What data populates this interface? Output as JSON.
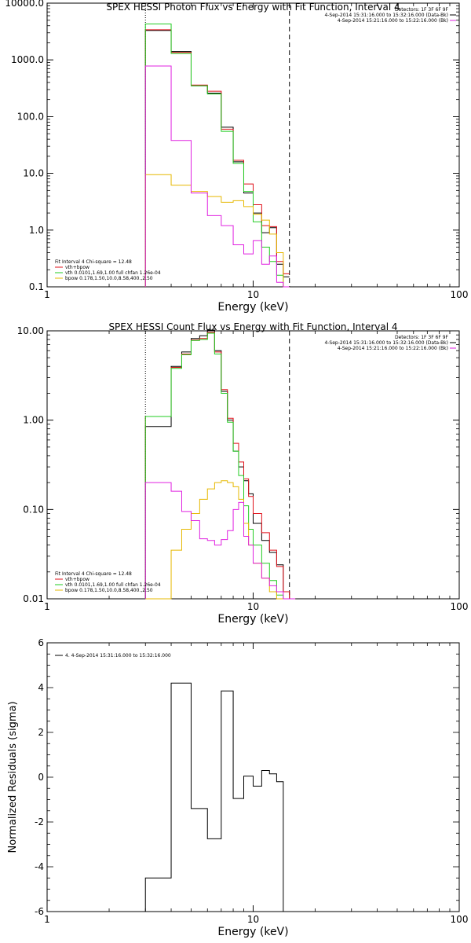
{
  "colors": {
    "axis": "#000000",
    "data": "#000000",
    "model": "#e0101a",
    "vth": "#22cc22",
    "bpow": "#e6b800",
    "background": "#e020e0"
  },
  "chart_data": [
    {
      "type": "line",
      "title": "SPEX HESSI Photon Flux vs Energy with Fit Function, Interval 4",
      "xlabel": "Energy (keV)",
      "ylabel": "",
      "xscale": "log",
      "yscale": "log",
      "xlim": [
        1,
        100
      ],
      "ylim": [
        0.1,
        10000
      ],
      "xtick_labels": [
        "1",
        "10",
        "100"
      ],
      "ytick_labels": [
        "0.1",
        "1.0",
        "10.0",
        "100.0",
        "1000.0",
        "10000.0"
      ],
      "ytick_values": [
        0.1,
        1,
        10,
        100,
        1000,
        10000
      ],
      "vlines": [
        {
          "x": 3.0,
          "style": "dotted"
        },
        {
          "x": 15.0,
          "style": "dashed"
        }
      ],
      "legend_right": [
        "Detectors: 1F 3F 6F 9F",
        "4-Sep-2014 15:31:16.000 to 15:32:16.000 (Data-Bk)",
        "4-Sep-2014 15:21:16.000 to 15:22:16.000 (Bk)"
      ],
      "legend_left": [
        "Fit Interval 4   Chi-square = 12.48",
        "vth+bpow",
        "vth 0.0101,1.69,1.00  full chfan 1.26e-04",
        "bpow 0.178,1.50,10.0,8.58,400.,2.50"
      ],
      "bin_edges": [
        3.0,
        4.0,
        5.0,
        6.0,
        7.0,
        8.0,
        9.0,
        10.0,
        11.0,
        12.0,
        13.0,
        14.0,
        15.0
      ],
      "series": [
        {
          "name": "Data-Bk",
          "color": "#000000",
          "values": [
            3300,
            1400,
            350,
            260,
            65,
            16,
            4.5,
            2.0,
            0.9,
            1.1,
            0.25,
            0.15
          ]
        },
        {
          "name": "vth+bpow",
          "color": "#e0101a",
          "values": [
            3400,
            1350,
            360,
            280,
            60,
            17,
            6.5,
            2.8,
            1.2,
            1.15,
            0.28,
            0.17
          ]
        },
        {
          "name": "vth",
          "color": "#22cc22",
          "values": [
            4300,
            1300,
            350,
            250,
            55,
            15,
            4.8,
            1.4,
            0.5,
            0.28,
            0.16,
            0.1
          ]
        },
        {
          "name": "bpow",
          "color": "#e6b800",
          "values": [
            9.5,
            6.2,
            4.8,
            3.9,
            3.1,
            3.3,
            2.6,
            1.9,
            1.5,
            0.85,
            0.4,
            0.1
          ]
        },
        {
          "name": "Bk",
          "color": "#e020e0",
          "values": [
            780,
            38,
            4.5,
            1.8,
            1.2,
            0.55,
            0.38,
            0.65,
            0.25,
            0.35,
            0.12,
            0.1
          ]
        }
      ]
    },
    {
      "type": "line",
      "title": "SPEX HESSI Count Flux vs Energy with Fit Function, Interval 4",
      "xlabel": "Energy (keV)",
      "ylabel": "",
      "xscale": "log",
      "yscale": "log",
      "xlim": [
        1,
        100
      ],
      "ylim": [
        0.01,
        10
      ],
      "xtick_labels": [
        "1",
        "10",
        "100"
      ],
      "ytick_labels": [
        "0.01",
        "0.10",
        "1.00",
        "10.00"
      ],
      "ytick_values": [
        0.01,
        0.1,
        1,
        10
      ],
      "vlines": [
        {
          "x": 3.0,
          "style": "dotted"
        },
        {
          "x": 15.0,
          "style": "dashed"
        }
      ],
      "legend_right": [
        "Detectors: 1F 3F 6F 9F",
        "4-Sep-2014 15:31:16.000 to 15:32:16.000 (Data-Bk)",
        "4-Sep-2014 15:21:16.000 to 15:22:16.000 (Bk)"
      ],
      "legend_left": [
        "Fit Interval 4   Chi-square = 12.48",
        "vth+bpow",
        "vth 0.0101,1.69,1.00  full chfan 1.26e-04",
        "bpow 0.178,1.50,10.0,8.58,400.,2.50"
      ],
      "bin_edges": [
        3.0,
        4.0,
        4.5,
        5.0,
        5.5,
        6.0,
        6.5,
        7.0,
        7.5,
        8.0,
        8.5,
        9.0,
        9.5,
        10.0,
        11.0,
        12.0,
        13.0,
        14.0,
        15.0,
        16.0
      ],
      "series": [
        {
          "name": "Data-Bk",
          "color": "#000000",
          "values": [
            0.85,
            4.0,
            5.8,
            8.2,
            8.8,
            10.2,
            6.0,
            2.1,
            1.0,
            0.45,
            0.3,
            0.21,
            0.15,
            0.07,
            0.045,
            0.033,
            0.024,
            0.012,
            0.01
          ]
        },
        {
          "name": "vth+bpow",
          "color": "#e0101a",
          "values": [
            1.1,
            3.9,
            5.5,
            7.9,
            8.2,
            9.6,
            5.8,
            2.2,
            1.05,
            0.55,
            0.34,
            0.22,
            0.14,
            0.09,
            0.055,
            0.035,
            0.023,
            0.012,
            0.01
          ]
        },
        {
          "name": "vth",
          "color": "#22cc22",
          "values": [
            1.1,
            3.8,
            5.4,
            7.8,
            8.0,
            9.4,
            5.5,
            2.0,
            0.95,
            0.45,
            0.24,
            0.11,
            0.06,
            0.04,
            0.025,
            0.016,
            0.011,
            0.01,
            0.01
          ]
        },
        {
          "name": "bpow",
          "color": "#e6b800",
          "values": [
            0.01,
            0.035,
            0.06,
            0.09,
            0.13,
            0.17,
            0.2,
            0.21,
            0.2,
            0.18,
            0.13,
            0.07,
            0.04,
            0.025,
            0.017,
            0.012,
            0.01,
            0.01,
            0.01
          ]
        },
        {
          "name": "Bk",
          "color": "#e020e0",
          "values": [
            0.2,
            0.16,
            0.095,
            0.075,
            0.047,
            0.045,
            0.04,
            0.046,
            0.058,
            0.1,
            0.12,
            0.05,
            0.04,
            0.025,
            0.017,
            0.014,
            0.012,
            0.01,
            0.01
          ]
        }
      ]
    },
    {
      "type": "line",
      "title": "",
      "xlabel": "Energy (keV)",
      "ylabel": "Normalized Residuals (sigma)",
      "xscale": "log",
      "yscale": "linear",
      "xlim": [
        1,
        100
      ],
      "ylim": [
        -6,
        6
      ],
      "xtick_labels": [
        "1",
        "10",
        "100"
      ],
      "ytick_labels": [
        "-6",
        "-4",
        "-2",
        "0",
        "2",
        "4",
        "6"
      ],
      "ytick_values": [
        -6,
        -4,
        -2,
        0,
        2,
        4,
        6
      ],
      "vlines": [],
      "legend_left": [
        "4.  4-Sep-2014 15:31:16.000 to 15:32:16.000"
      ],
      "bin_edges": [
        3.0,
        4.0,
        5.0,
        6.0,
        7.0,
        8.0,
        9.0,
        10.0,
        11.0,
        12.0,
        13.0,
        14.0,
        15.0
      ],
      "series": [
        {
          "name": "residuals",
          "color": "#000000",
          "values": [
            -4.5,
            4.2,
            -1.4,
            -2.75,
            3.85,
            -0.95,
            0.05,
            -0.4,
            0.3,
            0.15,
            -0.2,
            -6.1
          ]
        }
      ]
    }
  ]
}
